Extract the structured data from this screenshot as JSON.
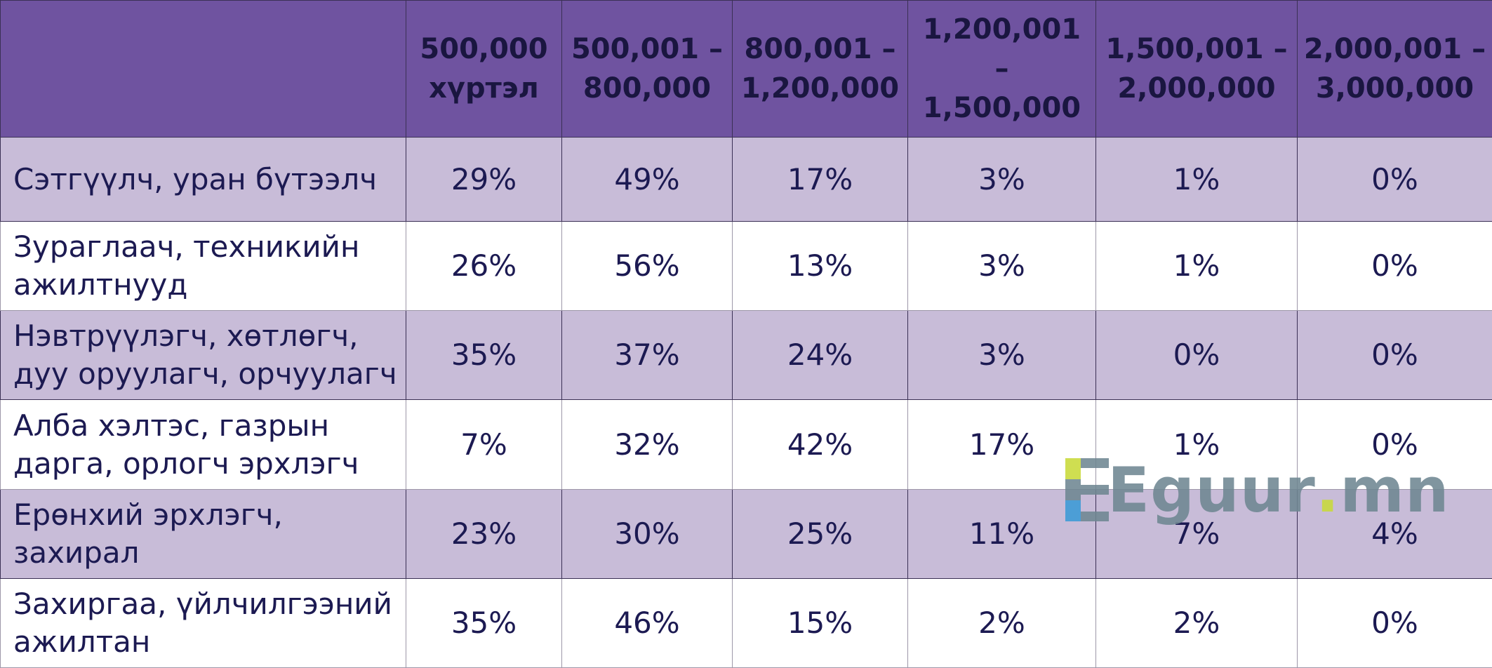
{
  "chart_data": {
    "type": "table",
    "columns": [
      "",
      "500,000 хүртэл",
      "500,001 – 800,000",
      "800,001 – 1,200,000",
      "1,200,001 – 1,500,000",
      "1,500,001 – 2,000,000",
      "2,000,001 – 3,000,000"
    ],
    "rows": [
      {
        "label": "Сэтгүүлч, уран бүтээлч",
        "values": [
          "29%",
          "49%",
          "17%",
          "3%",
          "1%",
          "0%"
        ]
      },
      {
        "label": "Зураглаач, техникийн ажилтнууд",
        "values": [
          "26%",
          "56%",
          "13%",
          "3%",
          "1%",
          "0%"
        ]
      },
      {
        "label": "Нэвтрүүлэгч, хөтлөгч, дуу оруулагч, орчуулагч",
        "values": [
          "35%",
          "37%",
          "24%",
          "3%",
          "0%",
          "0%"
        ]
      },
      {
        "label": "Алба хэлтэс, газрын дарга, орлогч эрхлэгч",
        "values": [
          "7%",
          "32%",
          "42%",
          "17%",
          "1%",
          "0%"
        ]
      },
      {
        "label": "Ерөнхий эрхлэгч, захирал",
        "values": [
          "23%",
          "30%",
          "25%",
          "11%",
          "7%",
          "4%"
        ]
      },
      {
        "label": "Захиргаа, үйлчилгээний ажилтан",
        "values": [
          "35%",
          "46%",
          "15%",
          "2%",
          "2%",
          "0%"
        ]
      }
    ]
  },
  "watermark": {
    "main": "Eguur",
    "dot": ".",
    "tld": "mn"
  },
  "colors": {
    "header_bg": "#6f53a0",
    "row_alt_bg": "#c8bcd8",
    "text": "#1c1a52"
  }
}
